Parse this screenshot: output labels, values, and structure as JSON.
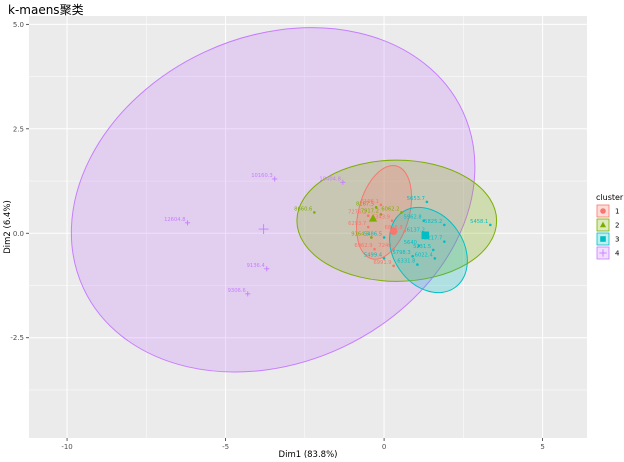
{
  "chart_data": {
    "type": "scatter",
    "title": "k-maens聚类",
    "xlabel": "Dim1 (83.8%)",
    "ylabel": "Dim2 (6.4%)",
    "xlim": [
      -11.2,
      6.4
    ],
    "ylim": [
      -4.9,
      5.2
    ],
    "xticks": [
      -10,
      -5,
      0,
      5
    ],
    "xtick_labels": [
      "-10",
      "-5",
      "0",
      "5"
    ],
    "yticks": [
      -2.5,
      0,
      2.5,
      5
    ],
    "ytick_labels": [
      "-2.5",
      "0.0",
      "2.5",
      "5.0"
    ],
    "grid": true,
    "legend": {
      "title": "cluster",
      "position": "right",
      "entries": [
        "1",
        "2",
        "3",
        "4"
      ]
    },
    "colors": {
      "1": "#F8766D",
      "2": "#7CAE00",
      "3": "#00BFC4",
      "4": "#C77CFF"
    },
    "background": "#EBEBEB",
    "ellipses": [
      {
        "cluster": "4",
        "cx": -3.5,
        "cy": 0.8,
        "rx": 13.2,
        "ry": 3.9,
        "angle": 25
      },
      {
        "cluster": "2",
        "cx": 0.4,
        "cy": 0.3,
        "rx": 6.3,
        "ry": 1.45,
        "angle": 0
      },
      {
        "cluster": "1",
        "cx": 0.0,
        "cy": 0.5,
        "rx": 1.6,
        "ry": 1.15,
        "angle": -15
      },
      {
        "cluster": "3",
        "cx": 1.4,
        "cy": -0.4,
        "rx": 2.2,
        "ry": 1.1,
        "angle": 35
      }
    ],
    "centroids": [
      {
        "cluster": "1",
        "x": 0.3,
        "y": 0.05
      },
      {
        "cluster": "2",
        "x": -0.35,
        "y": 0.35
      },
      {
        "cluster": "3",
        "x": 1.3,
        "y": -0.05
      },
      {
        "cluster": "4",
        "x": -3.8,
        "y": 0.1
      }
    ],
    "points": [
      {
        "label": "12604.8",
        "x": -6.2,
        "y": 0.25,
        "cluster": "4"
      },
      {
        "label": "10160.3",
        "x": -3.45,
        "y": 1.3,
        "cluster": "4"
      },
      {
        "label": "10404.8",
        "x": -1.3,
        "y": 1.22,
        "cluster": "4"
      },
      {
        "label": "9136.4",
        "x": -3.7,
        "y": -0.85,
        "cluster": "4"
      },
      {
        "label": "9306.6",
        "x": -4.3,
        "y": -1.45,
        "cluster": "4"
      },
      {
        "label": "8660.6",
        "x": -2.2,
        "y": 0.5,
        "cluster": "2"
      },
      {
        "label": "8167.5",
        "x": -0.25,
        "y": 0.62,
        "cluster": "2"
      },
      {
        "label": "7917.2",
        "x": -0.1,
        "y": 0.45,
        "cluster": "2"
      },
      {
        "label": "6062.2",
        "x": 0.55,
        "y": 0.5,
        "cluster": "2"
      },
      {
        "label": "9164.5",
        "x": -0.4,
        "y": -0.1,
        "cluster": "2"
      },
      {
        "label": "5458.1",
        "x": 3.35,
        "y": 0.2,
        "cluster": "3"
      },
      {
        "label": "5653.7",
        "x": 1.35,
        "y": 0.75,
        "cluster": "3"
      },
      {
        "label": "5962.8",
        "x": 1.25,
        "y": 0.3,
        "cluster": "3"
      },
      {
        "label": "5825.2",
        "x": 1.9,
        "y": 0.2,
        "cluster": "3"
      },
      {
        "label": "6137.2",
        "x": 1.35,
        "y": 0.0,
        "cluster": "3"
      },
      {
        "label": "5217.7",
        "x": 1.9,
        "y": -0.2,
        "cluster": "3"
      },
      {
        "label": "5640",
        "x": 1.1,
        "y": -0.3,
        "cluster": "3"
      },
      {
        "label": "5486.5",
        "x": 0.0,
        "y": -0.1,
        "cluster": "3"
      },
      {
        "label": "5231.5",
        "x": 1.55,
        "y": -0.4,
        "cluster": "3"
      },
      {
        "label": "5798.3",
        "x": 0.9,
        "y": -0.55,
        "cluster": "3"
      },
      {
        "label": "5499.4",
        "x": 0.0,
        "y": -0.6,
        "cluster": "3"
      },
      {
        "label": "6022.4",
        "x": 1.6,
        "y": -0.6,
        "cluster": "3"
      },
      {
        "label": "6331.8",
        "x": 1.05,
        "y": -0.75,
        "cluster": "3"
      },
      {
        "label": "6196.1",
        "x": -0.1,
        "y": 0.68,
        "cluster": "1"
      },
      {
        "label": "7276.2",
        "x": -0.5,
        "y": 0.42,
        "cluster": "1"
      },
      {
        "label": "6343.9",
        "x": 0.25,
        "y": 0.3,
        "cluster": "1"
      },
      {
        "label": "6293.7",
        "x": -0.5,
        "y": 0.15,
        "cluster": "1"
      },
      {
        "label": "6828.8",
        "x": 0.65,
        "y": 0.05,
        "cluster": "1"
      },
      {
        "label": "6962.9",
        "x": -0.3,
        "y": -0.38,
        "cluster": "1"
      },
      {
        "label": "7240",
        "x": 0.3,
        "y": -0.38,
        "cluster": "1"
      },
      {
        "label": "6991.9",
        "x": 0.3,
        "y": -0.78,
        "cluster": "1"
      }
    ]
  }
}
